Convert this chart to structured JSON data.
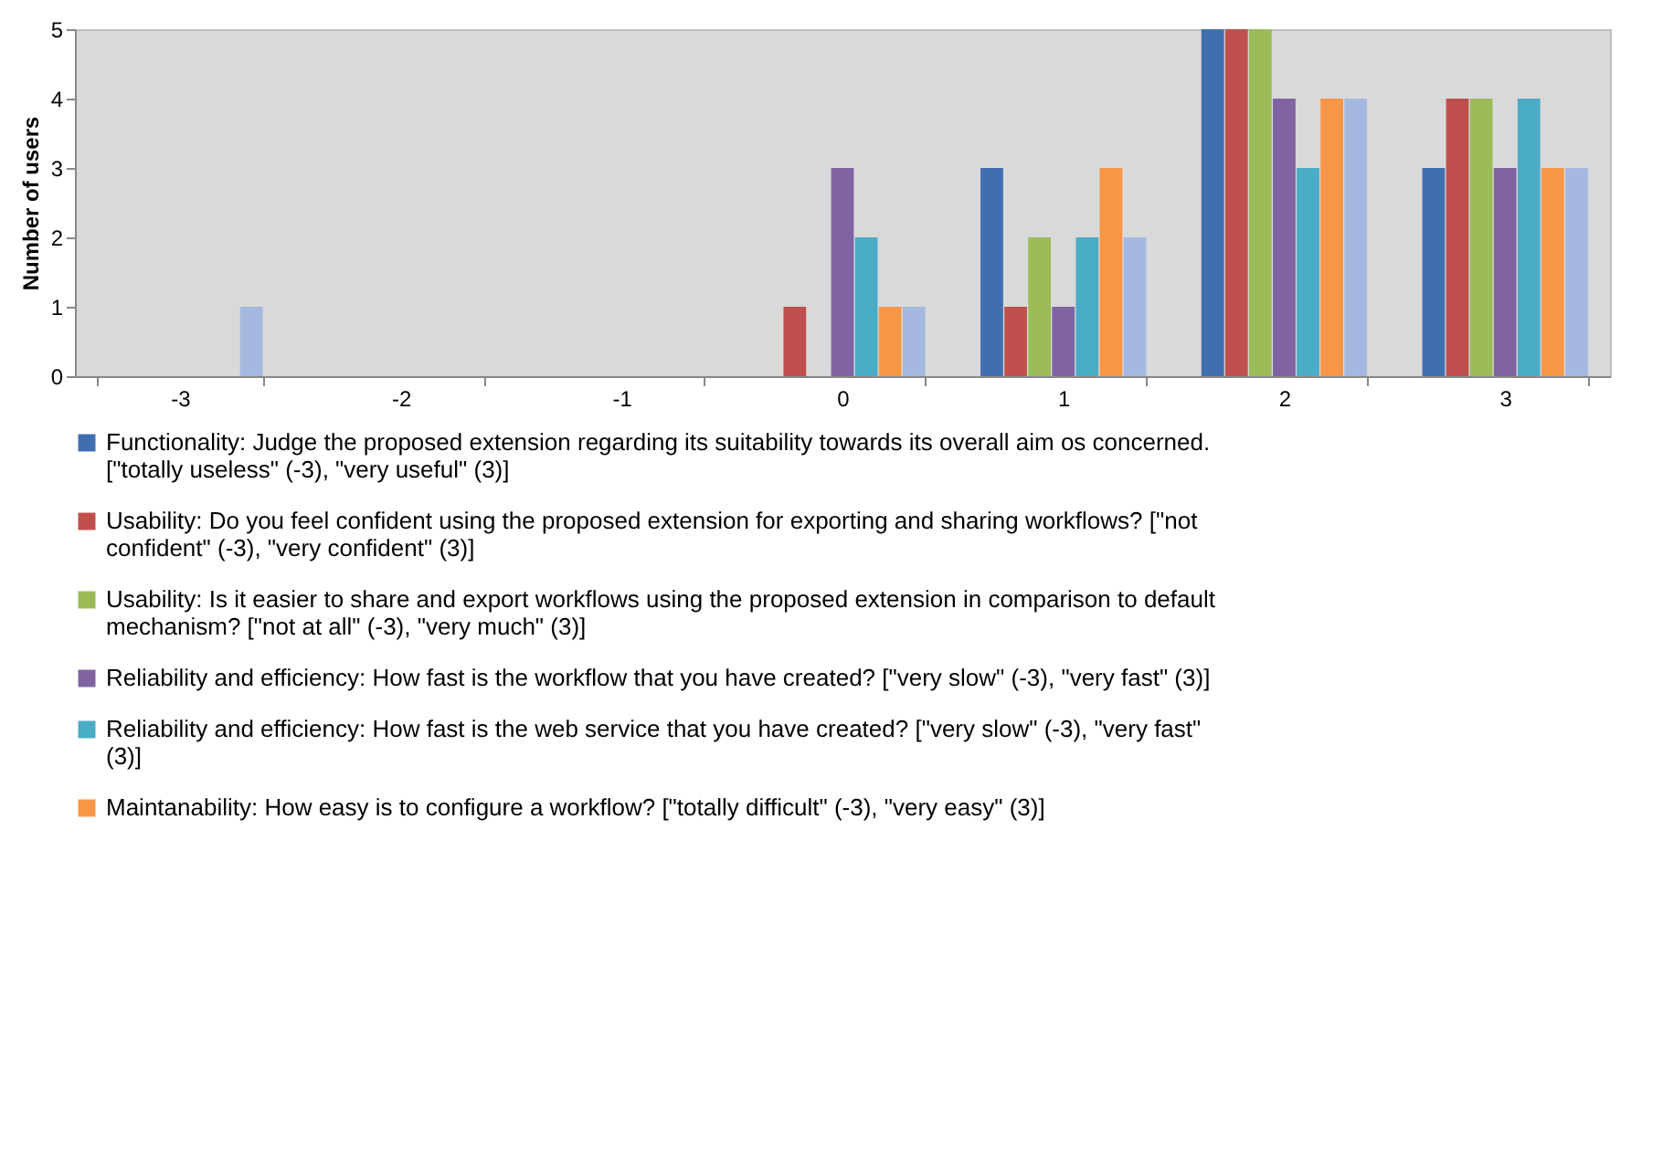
{
  "chart_data": {
    "type": "bar",
    "ylabel": "Number of users",
    "categories": [
      "-3",
      "-2",
      "-1",
      "0",
      "1",
      "2",
      "3"
    ],
    "ylim": [
      0,
      5
    ],
    "yticks": [
      0,
      1,
      2,
      3,
      4,
      5
    ],
    "grid": false,
    "legend": "bottom",
    "series": [
      {
        "name": "Functionality: Judge the proposed extension regarding its suitability towards its overall aim os concerned. [\"totally useless\" (-3), \"very useful\" (3)]",
        "color": "#3f6fb0",
        "values": [
          0,
          0,
          0,
          0,
          3,
          5,
          3
        ]
      },
      {
        "name": "Usability: Do you feel confident using the proposed extension for exporting and sharing workflows? [\"not confident\" (-3), \"very confident\" (3)]",
        "color": "#c0504d",
        "values": [
          0,
          0,
          0,
          1,
          1,
          5,
          4
        ]
      },
      {
        "name": "Usability: Is it easier to share and export workflows using the proposed extension in comparison to default mechanism? [\"not at all\" (-3), \"very much\" (3)]",
        "color": "#9bbb59",
        "values": [
          0,
          0,
          0,
          0,
          2,
          5,
          4
        ]
      },
      {
        "name": "Reliability and efficiency: How fast is the workflow that you have created? [\"very slow\" (-3), \"very fast\" (3)]",
        "color": "#8064a2",
        "values": [
          0,
          0,
          0,
          3,
          1,
          4,
          3
        ]
      },
      {
        "name": "Reliability and efficiency: How fast is the web service that you have created? [\"very slow\" (-3), \"very fast\" (3)]",
        "color": "#4bacc6",
        "values": [
          0,
          0,
          0,
          2,
          2,
          3,
          4
        ]
      },
      {
        "name": "Maintanability: How easy is to configure a workflow? [\"totally difficult\" (-3), \"very easy\" (3)]",
        "color": "#f79646",
        "values": [
          0,
          0,
          0,
          1,
          3,
          4,
          3
        ]
      },
      {
        "color": "#a5b9e0",
        "values": [
          1,
          0,
          0,
          1,
          2,
          4,
          3
        ]
      }
    ]
  }
}
